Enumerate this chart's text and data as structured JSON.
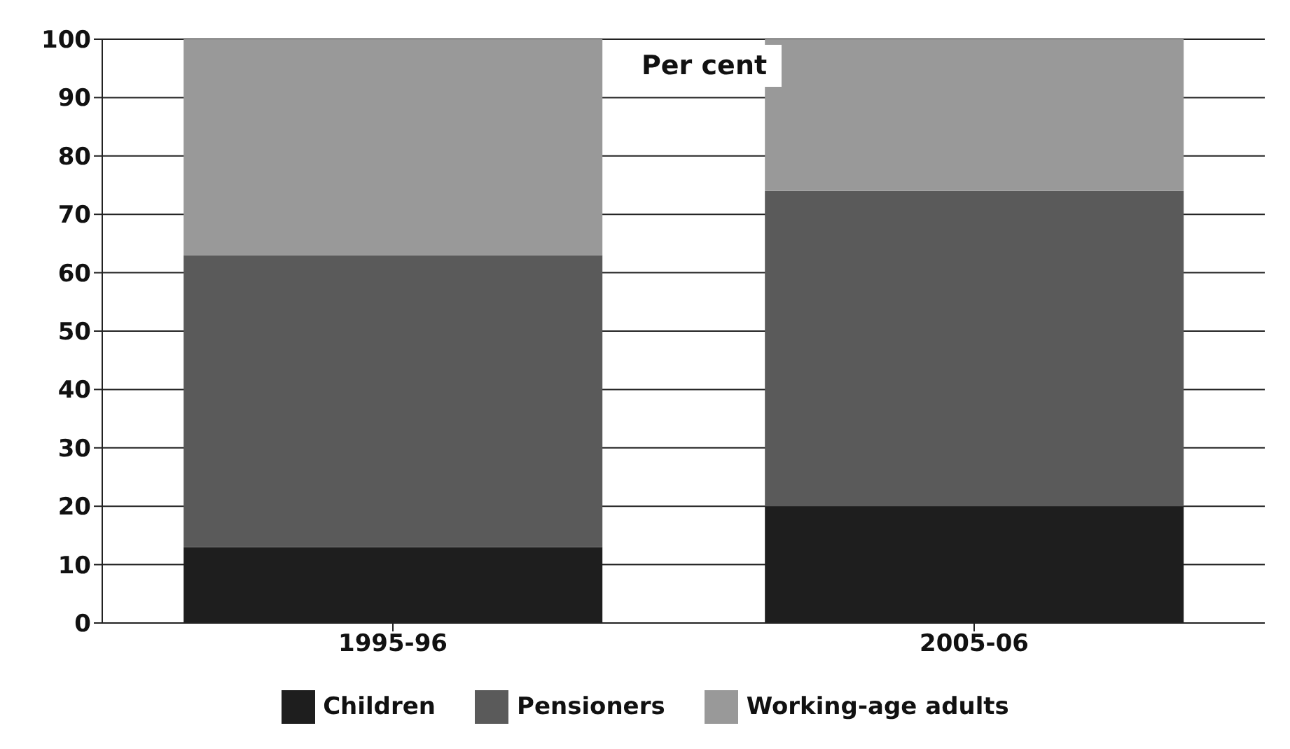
{
  "chart_data": {
    "type": "bar",
    "stacked": true,
    "categories": [
      "1995-96",
      "2005-06"
    ],
    "series": [
      {
        "name": "Children",
        "color": "#1e1e1e",
        "values": [
          13,
          20
        ]
      },
      {
        "name": "Pensioners",
        "color": "#5a5a5a",
        "values": [
          50,
          54
        ]
      },
      {
        "name": "Working-age adults",
        "color": "#999999",
        "values": [
          37,
          26
        ]
      }
    ],
    "ylim": [
      0,
      100
    ],
    "yticks": [
      0,
      10,
      20,
      30,
      40,
      50,
      60,
      70,
      80,
      90,
      100
    ],
    "grid": "y",
    "legend": "bottom",
    "annotations": [
      "Per cent"
    ]
  }
}
